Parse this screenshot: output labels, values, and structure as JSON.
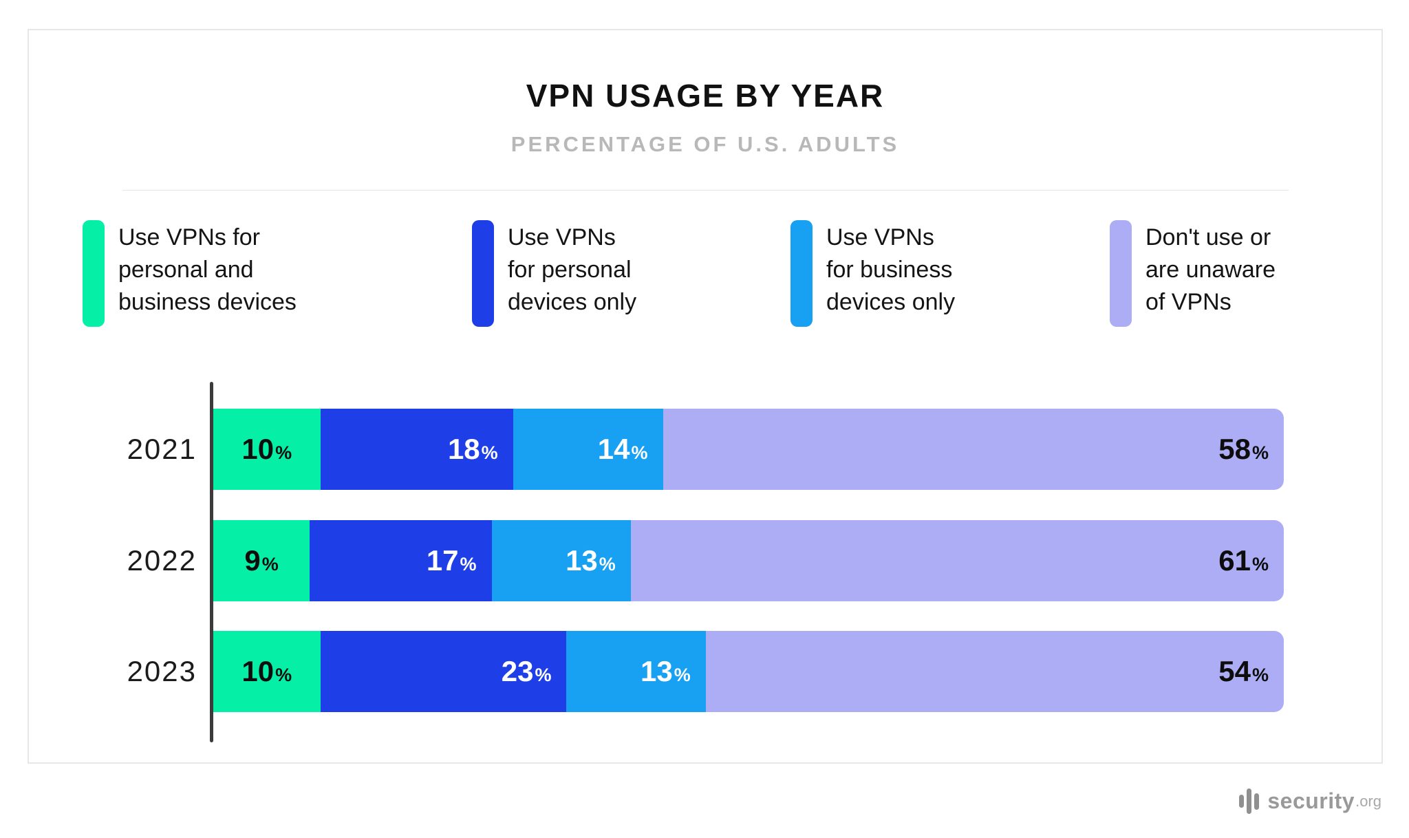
{
  "header": {
    "title": "VPN USAGE BY YEAR",
    "subtitle": "PERCENTAGE OF U.S. ADULTS"
  },
  "legend": {
    "items": [
      {
        "label": "Use VPNs for\npersonal and\nbusiness devices"
      },
      {
        "label": "Use VPNs\nfor personal\ndevices only"
      },
      {
        "label": "Use VPNs\nfor business\ndevices only"
      },
      {
        "label": "Don't use or\nare unaware\nof VPNs"
      }
    ]
  },
  "chart_data": {
    "type": "bar",
    "orientation": "horizontal-stacked",
    "title": "VPN USAGE BY YEAR",
    "subtitle": "PERCENTAGE OF U.S. ADULTS",
    "unit": "%",
    "x_range": [
      0,
      100
    ],
    "grid": false,
    "legend_position": "top",
    "categories": [
      "2021",
      "2022",
      "2023"
    ],
    "series": [
      {
        "name": "Use VPNs for personal and business devices",
        "color": "#06EFA7",
        "label_color": "#0d0d0d",
        "label_align": "center",
        "values": [
          10,
          9,
          10
        ]
      },
      {
        "name": "Use VPNs for personal devices only",
        "color": "#1E3EE8",
        "label_color": "#ffffff",
        "label_align": "right",
        "values": [
          18,
          17,
          23
        ]
      },
      {
        "name": "Use VPNs for business devices only",
        "color": "#18A0F2",
        "label_color": "#ffffff",
        "label_align": "right",
        "values": [
          14,
          13,
          13
        ]
      },
      {
        "name": "Don't use or are unaware of VPNs",
        "color": "#ACADF5",
        "label_color": "#0d0d0d",
        "label_align": "right",
        "values": [
          58,
          61,
          54
        ]
      }
    ]
  },
  "footer": {
    "brand": "security",
    "tld": ".org"
  }
}
